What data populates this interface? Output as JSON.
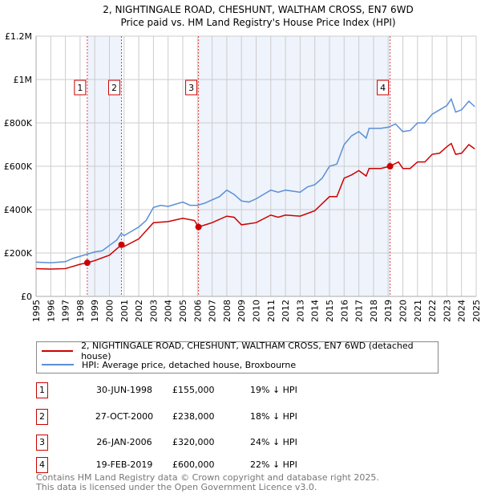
{
  "chart_data": {
    "type": "line",
    "title": "2, NIGHTINGALE ROAD, CHESHUNT, WALTHAM CROSS, EN7 6WD",
    "subtitle": "Price paid vs. HM Land Registry's House Price Index (HPI)",
    "xlim": [
      1995,
      2025
    ],
    "ylim": [
      0,
      1200000
    ],
    "yticks": [
      {
        "v": 0,
        "label": "£0"
      },
      {
        "v": 200000,
        "label": "£200K"
      },
      {
        "v": 400000,
        "label": "£400K"
      },
      {
        "v": 600000,
        "label": "£600K"
      },
      {
        "v": 800000,
        "label": "£800K"
      },
      {
        "v": 1000000,
        "label": "£1M"
      },
      {
        "v": 1200000,
        "label": "£1.2M"
      }
    ],
    "xticks": [
      "1995",
      "1996",
      "1997",
      "1998",
      "1999",
      "2000",
      "2001",
      "2002",
      "2003",
      "2004",
      "2005",
      "2006",
      "2007",
      "2008",
      "2009",
      "2010",
      "2011",
      "2012",
      "2013",
      "2014",
      "2015",
      "2016",
      "2017",
      "2018",
      "2019",
      "2020",
      "2021",
      "2022",
      "2023",
      "2024",
      "2025"
    ],
    "grid": true,
    "series": [
      {
        "name": "2, NIGHTINGALE ROAD, CHESHUNT, WALTHAM CROSS, EN7 6WD (detached house)",
        "color": "#cc0000",
        "x": [
          1995,
          1996,
          1997,
          1998,
          1998.49,
          1999,
          2000,
          2000.82,
          2001,
          2002,
          2003,
          2004,
          2005,
          2005.8,
          2006.07,
          2007,
          2008,
          2008.5,
          2009,
          2010,
          2011,
          2011.5,
          2012,
          2013,
          2014,
          2015,
          2015.5,
          2016,
          2016.5,
          2017,
          2017.5,
          2017.7,
          2018.5,
          2019.13,
          2019.7,
          2020,
          2020.5,
          2021,
          2021.5,
          2022,
          2022.5,
          2023,
          2023.3,
          2023.6,
          2024,
          2024.5,
          2024.9
        ],
        "y": [
          128000,
          126000,
          128000,
          148000,
          155000,
          165000,
          190000,
          238000,
          230000,
          265000,
          340000,
          345000,
          360000,
          350000,
          320000,
          340000,
          370000,
          365000,
          330000,
          340000,
          375000,
          365000,
          375000,
          370000,
          395000,
          460000,
          460000,
          545000,
          560000,
          580000,
          555000,
          590000,
          590000,
          600000,
          620000,
          590000,
          590000,
          620000,
          620000,
          655000,
          660000,
          690000,
          705000,
          655000,
          660000,
          700000,
          680000
        ]
      },
      {
        "name": "HPI: Average price, detached house, Broxbourne",
        "color": "#5b8fd4",
        "x": [
          1995,
          1996,
          1997,
          1997.5,
          1998.5,
          1999,
          1999.5,
          2000,
          2000.5,
          2000.8,
          2001,
          2001.5,
          2002,
          2002.5,
          2003,
          2003.5,
          2004,
          2004.5,
          2005,
          2005.5,
          2006,
          2006.5,
          2007,
          2007.5,
          2008,
          2008.5,
          2009,
          2009.5,
          2010,
          2010.5,
          2011,
          2011.5,
          2012,
          2012.5,
          2013,
          2013.5,
          2014,
          2014.5,
          2015,
          2015.5,
          2016,
          2016.5,
          2017,
          2017.5,
          2017.7,
          2018,
          2018.5,
          2019,
          2019.5,
          2020,
          2020.5,
          2021,
          2021.5,
          2022,
          2022.5,
          2023,
          2023.3,
          2023.6,
          2024,
          2024.5,
          2024.9
        ],
        "y": [
          158000,
          155000,
          160000,
          175000,
          195000,
          205000,
          210000,
          235000,
          260000,
          290000,
          280000,
          300000,
          320000,
          350000,
          410000,
          420000,
          415000,
          425000,
          435000,
          420000,
          420000,
          430000,
          445000,
          460000,
          490000,
          470000,
          440000,
          435000,
          450000,
          470000,
          490000,
          480000,
          490000,
          485000,
          480000,
          505000,
          515000,
          545000,
          600000,
          610000,
          700000,
          740000,
          760000,
          730000,
          775000,
          775000,
          775000,
          780000,
          795000,
          760000,
          765000,
          800000,
          800000,
          840000,
          860000,
          880000,
          910000,
          850000,
          860000,
          900000,
          875000
        ]
      }
    ],
    "sales": [
      {
        "id": "1",
        "x": 1998.49,
        "y": 155000,
        "date": "30-JUN-1998",
        "price": "£155,000",
        "pct": "19% ↓ HPI"
      },
      {
        "id": "2",
        "x": 2000.82,
        "y": 238000,
        "date": "27-OCT-2000",
        "price": "£238,000",
        "pct": "18% ↓ HPI"
      },
      {
        "id": "3",
        "x": 2006.07,
        "y": 320000,
        "date": "26-JAN-2006",
        "price": "£320,000",
        "pct": "24% ↓ HPI"
      },
      {
        "id": "4",
        "x": 2019.13,
        "y": 600000,
        "date": "19-FEB-2019",
        "price": "£600,000",
        "pct": "22% ↓ HPI"
      }
    ],
    "legend_position": "bottom"
  },
  "footer": {
    "line1": "Contains HM Land Registry data © Crown copyright and database right 2025.",
    "line2": "This data is licensed under the Open Government Licence v3.0."
  }
}
